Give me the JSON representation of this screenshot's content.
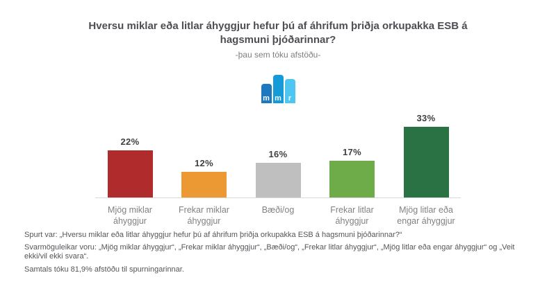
{
  "title": "Hversu miklar eða litlar áhyggjur hefur þú af áhrifum þriðja orkupakka ESB á hagsmuni þjóðarinnar?",
  "subtitle": "-þau sem tóku afstöðu-",
  "logo": {
    "letters": [
      "m",
      "m",
      "r"
    ],
    "colors": [
      "#1e78be",
      "#149bd8",
      "#4ec6f2"
    ]
  },
  "chart_data": {
    "type": "bar",
    "title": "Hversu miklar eða litlar áhyggjur hefur þú af áhrifum þriðja orkupakka ESB á hagsmuni þjóðarinnar?",
    "subtitle": "-þau sem tóku afstöðu-",
    "categories": [
      "Mjög miklar áhyggjur",
      "Frekar miklar áhyggjur",
      "Bæði/og",
      "Frekar litlar áhyggjur",
      "Mjög litlar eða engar áhyggjur"
    ],
    "values": [
      22,
      12,
      16,
      17,
      33
    ],
    "value_labels": [
      "22%",
      "12%",
      "16%",
      "17%",
      "33%"
    ],
    "colors": [
      "#b02b2b",
      "#ed9933",
      "#bfbfbf",
      "#6eac4a",
      "#2a7144"
    ],
    "value_suffix": "%",
    "ylim": [
      0,
      40
    ],
    "grid": false,
    "legend": false,
    "axis_line_color": "#d8d8d8"
  },
  "footnotes": [
    "Spurt var: „Hversu miklar eða litlar áhyggjur hefur þú af áhrifum þriðja orkupakka ESB á hagsmuni þjóðarinnar?“",
    "Svarmöguleikar voru: „Mjög miklar áhyggjur“, „Frekar miklar áhyggjur“, „Bæði/og“, „Frekar litlar áhyggjur“, „Mjög litlar eða engar áhyggjur“ og „Veit ekki/vil ekki svara“.",
    "Samtals tóku 81,9% afstöðu til spurningarinnar."
  ]
}
